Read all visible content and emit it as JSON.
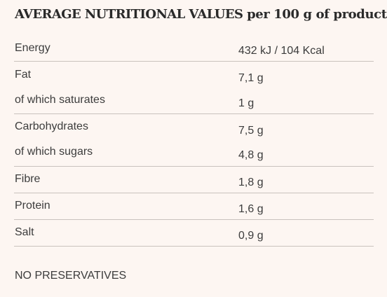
{
  "title": {
    "main": "AVERAGE NUTRITIONAL VALUES",
    "suffix": "per 100 g of product"
  },
  "rows": [
    {
      "label": "Energy",
      "value": "432 kJ / 104 Kcal"
    },
    {
      "label": "Fat",
      "value": "7,1 g"
    },
    {
      "label": "of which saturates",
      "value": "1 g"
    },
    {
      "label": "Carbohydrates",
      "value": "7,5 g"
    },
    {
      "label": "of which sugars",
      "value": "4,8 g"
    },
    {
      "label": "Fibre",
      "value": "1,8 g"
    },
    {
      "label": "Protein",
      "value": "1,6 g"
    },
    {
      "label": "Salt",
      "value": "0,9 g"
    }
  ],
  "note": "NO PRESERVATIVES"
}
